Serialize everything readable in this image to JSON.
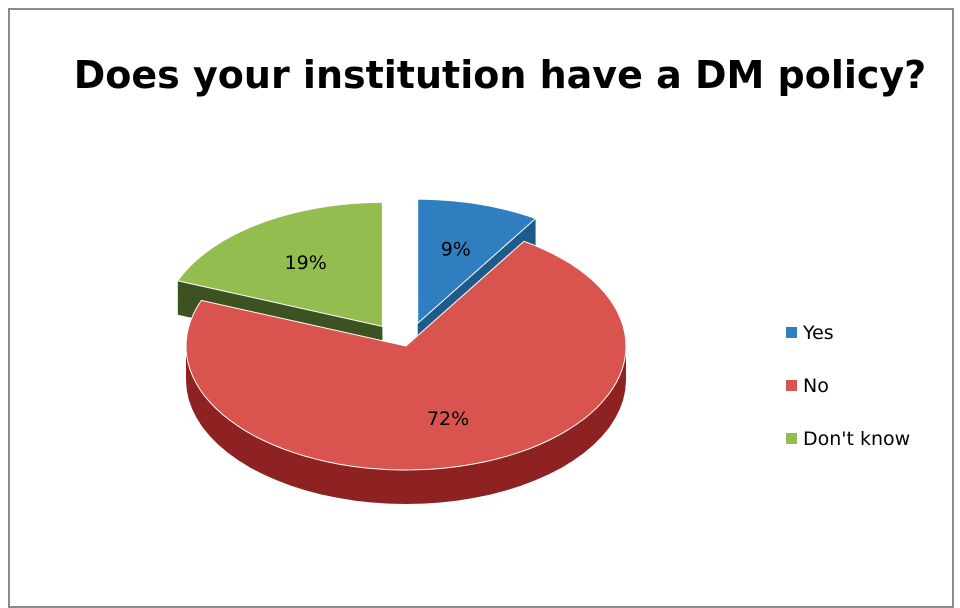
{
  "chart_data": {
    "type": "pie",
    "title": "Does your institution have a DM policy?",
    "slices": [
      {
        "label": "Yes",
        "value": 9,
        "display": "9%",
        "color": "#2f7ec0",
        "side": "#1f5a8c"
      },
      {
        "label": "No",
        "value": 72,
        "display": "72%",
        "color": "#d9534f",
        "side": "#8e2222"
      },
      {
        "label": "Don't know",
        "value": 19,
        "display": "19%",
        "color": "#94bd4f",
        "side": "#3d5221"
      }
    ],
    "legend_position": "right",
    "exploded": [
      "Yes",
      "Don't know"
    ]
  }
}
